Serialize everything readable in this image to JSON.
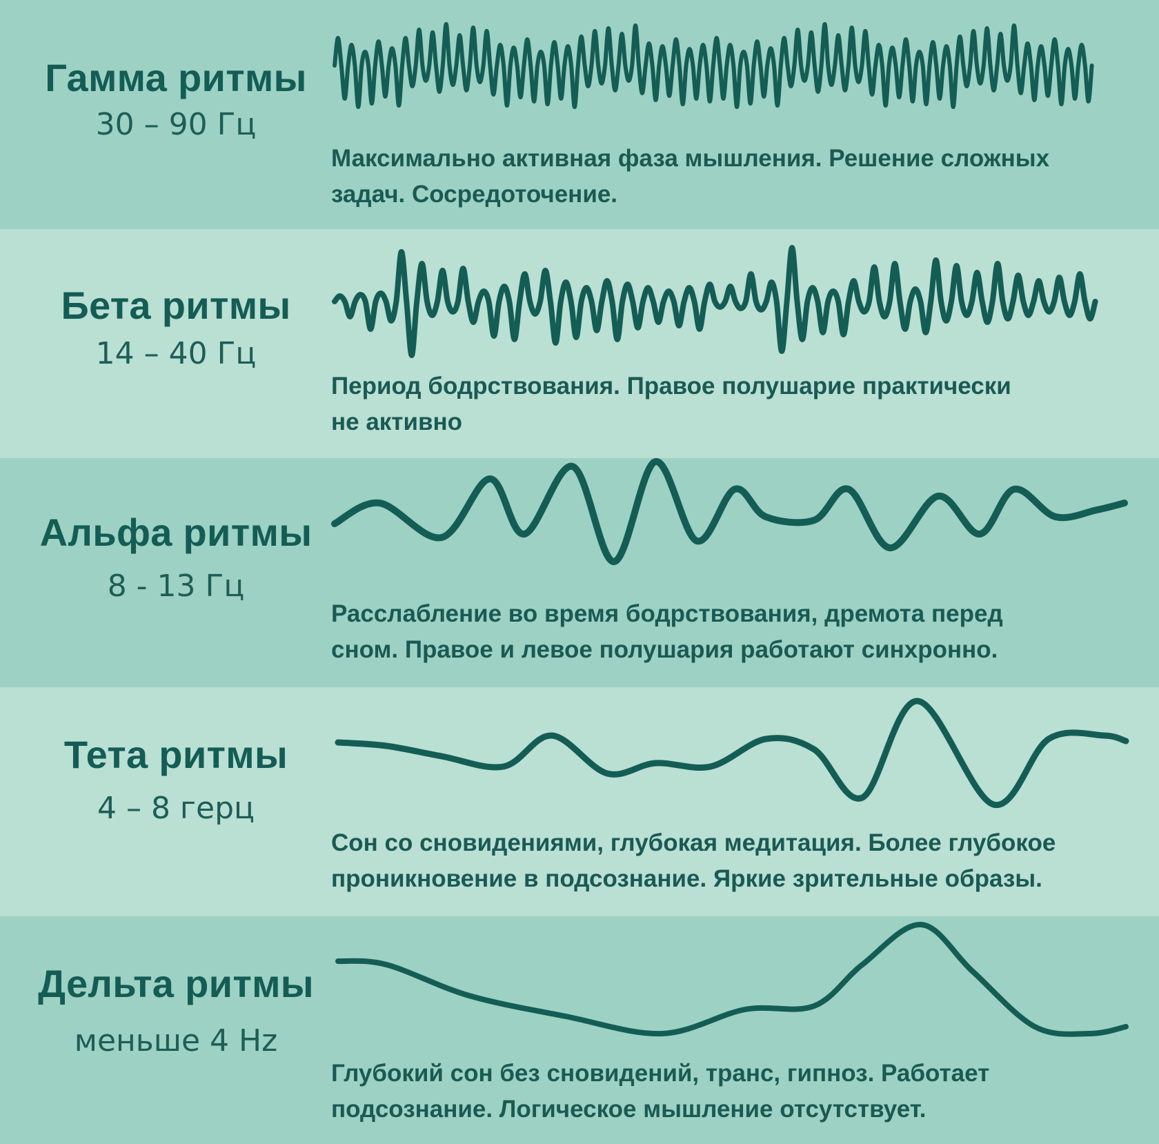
{
  "rhythms": [
    {
      "title": "Гамма ритмы",
      "frequency": "30 – 90 Гц",
      "description_line1": "Максимально активная фаза мышления. Решение сложных",
      "description_line2": "задач. Сосредоточение."
    },
    {
      "title": "Бета ритмы",
      "frequency": "14 – 40 Гц",
      "description_line1": "Период бодрствования. Правое полушарие практически",
      "description_line2": "не активно"
    },
    {
      "title": "Альфа ритмы",
      "frequency": "8 - 13 Гц",
      "description_line1": "Расслабление во время бодрствования, дремота перед",
      "description_line2": "сном. Правое и левое полушария работают синхронно."
    },
    {
      "title": "Тета ритмы",
      "frequency": "4 – 8 герц",
      "description_line1": "Сон со сновидениями, глубокая медитация. Более глубокое",
      "description_line2": "проникновение в подсознание. Яркие зрительные образы."
    },
    {
      "title": "Дельта ритмы",
      "frequency": "меньше 4 Hz",
      "description_line1": "Глубокий сон без сновидений, транс, гипноз. Работает",
      "description_line2": "подсознание. Логическое мышление отсутствует."
    }
  ],
  "colors": {
    "band_dark": "#9dd1c3",
    "band_light": "#badfd3",
    "text": "#145d55",
    "wave": "#145d55"
  }
}
